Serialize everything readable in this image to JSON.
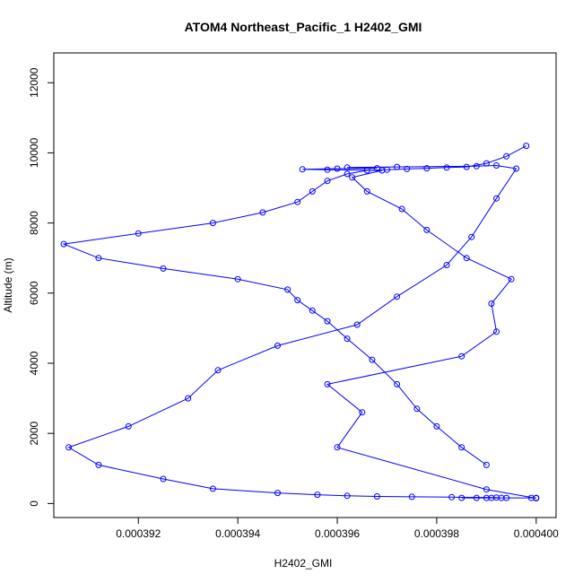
{
  "chart_data": {
    "type": "line",
    "title": "ATOM4 Northeast_Pacific_1 H2402_GMI",
    "xlabel": "H2402_GMI",
    "ylabel": "Altitude (m)",
    "xlim": [
      0.0003903,
      0.0004004
    ],
    "ylim": [
      -400,
      12850
    ],
    "x_ticks": [
      0.000392,
      0.000394,
      0.000396,
      0.000398,
      0.0004
    ],
    "x_tick_labels": [
      "0.000392",
      "0.000394",
      "0.000396",
      "0.000398",
      "0.000400"
    ],
    "y_ticks": [
      0,
      2000,
      4000,
      6000,
      8000,
      10000,
      12000
    ],
    "y_tick_labels": [
      "0",
      "2000",
      "4000",
      "6000",
      "8000",
      "10000",
      "12000"
    ],
    "grid": false,
    "colors": {
      "series": "#0000ff"
    },
    "series": [
      {
        "x": [
          0.0004,
          0.000399,
          0.000396,
          0.0003965,
          0.0003958,
          0.0003985,
          0.0003992,
          0.0003991,
          0.0003995,
          0.0003986,
          0.0003978,
          0.0003973,
          0.0003966,
          0.0003963,
          0.0003969,
          0.0003958,
          0.0003953,
          0.000396,
          0.0003968,
          0.0003962,
          0.0003972,
          0.0003988,
          0.0003992,
          0.0003996,
          0.0003992,
          0.0003987,
          0.0003982,
          0.0003972,
          0.0003964,
          0.0003948,
          0.0003936,
          0.000393,
          0.0003918,
          0.0003906,
          0.0003912,
          0.0003925,
          0.0003935,
          0.0003948,
          0.0003956,
          0.0003962,
          0.0003968,
          0.0003975,
          0.0003983,
          0.0003992,
          0.0003993,
          0.0003991,
          0.0003988,
          0.0003985,
          0.000399,
          0.0003994,
          0.0003999,
          0.0004
        ],
        "y": [
          150,
          400,
          1600,
          2600,
          3400,
          4200,
          4900,
          5700,
          6400,
          7000,
          7800,
          8400,
          8900,
          9300,
          9500,
          9520,
          9530,
          9550,
          9560,
          9580,
          9600,
          9620,
          9640,
          9550,
          8700,
          7600,
          6800,
          5900,
          5100,
          4500,
          3800,
          3000,
          2200,
          1600,
          1100,
          700,
          420,
          300,
          250,
          220,
          200,
          190,
          180,
          170,
          160,
          160,
          160,
          160,
          160,
          160,
          160,
          160
        ]
      },
      {
        "x": [
          0.000399,
          0.0003985,
          0.000398,
          0.0003976,
          0.0003972,
          0.0003967,
          0.0003962,
          0.0003958,
          0.0003955,
          0.0003952,
          0.000395,
          0.000394,
          0.0003925,
          0.0003912,
          0.0003905,
          0.000392,
          0.0003935,
          0.0003945,
          0.0003952,
          0.0003955,
          0.0003958,
          0.0003962,
          0.0003966,
          0.000397,
          0.0003974,
          0.0003978,
          0.0003982,
          0.0003986,
          0.000399,
          0.0003994,
          0.0003998
        ],
        "y": [
          1100,
          1600,
          2200,
          2700,
          3400,
          4100,
          4700,
          5200,
          5500,
          5800,
          6100,
          6400,
          6700,
          7000,
          7400,
          7700,
          8000,
          8300,
          8600,
          8900,
          9200,
          9400,
          9500,
          9520,
          9540,
          9560,
          9580,
          9600,
          9700,
          9900,
          10200
        ]
      }
    ]
  }
}
